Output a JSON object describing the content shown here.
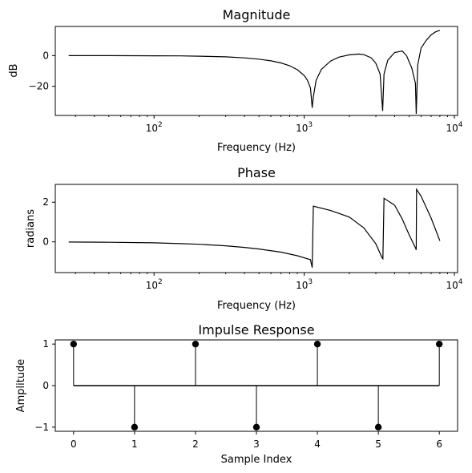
{
  "chart_data": [
    {
      "type": "line",
      "title": "Magnitude",
      "xlabel": "Frequency (Hz)",
      "ylabel": "dB",
      "xscale": "log",
      "xlim": [
        22,
        10500
      ],
      "ylim": [
        -39,
        19
      ],
      "xticks": [
        {
          "value": 100,
          "exp": "2"
        },
        {
          "value": 1000,
          "exp": "3"
        },
        {
          "value": 10000,
          "exp": "4"
        }
      ],
      "yticks": [
        0,
        -20
      ],
      "ytick_labels": [
        "0",
        "−20"
      ],
      "grid": false,
      "series": [
        {
          "x": [
            27,
            50,
            100,
            150,
            200,
            300,
            400,
            500,
            600,
            700,
            800,
            900,
            1000,
            1050,
            1100,
            1130,
            1150,
            1200,
            1300,
            1500,
            1700,
            2000,
            2300,
            2500,
            2800,
            3000,
            3200,
            3330,
            3400,
            3600,
            4000,
            4500,
            4800,
            5200,
            5500,
            5570,
            5700,
            6000,
            6500,
            7000,
            7500,
            8000
          ],
          "y": [
            0,
            0,
            -0.1,
            -0.2,
            -0.4,
            -0.8,
            -1.5,
            -2.3,
            -3.4,
            -4.8,
            -6.6,
            -9.2,
            -13,
            -16,
            -21,
            -34,
            -27,
            -16,
            -9,
            -3.5,
            -1,
            0.5,
            1,
            0.6,
            -1.5,
            -5,
            -12,
            -36,
            -12,
            -3,
            2,
            3,
            0,
            -8,
            -18,
            -38,
            -6,
            5,
            10,
            13.5,
            15.5,
            16.5
          ]
        }
      ]
    },
    {
      "type": "line",
      "title": "Phase",
      "xlabel": "Frequency (Hz)",
      "ylabel": "radians",
      "xscale": "log",
      "xlim": [
        22,
        10500
      ],
      "ylim": [
        -1.55,
        2.9
      ],
      "xticks": [
        {
          "value": 100,
          "exp": "2"
        },
        {
          "value": 1000,
          "exp": "3"
        },
        {
          "value": 10000,
          "exp": "4"
        }
      ],
      "yticks": [
        2,
        0
      ],
      "ytick_labels": [
        "2",
        "0"
      ],
      "grid": false,
      "series": [
        {
          "x": [
            27,
            50,
            100,
            150,
            200,
            300,
            400,
            500,
            700,
            900,
            1100,
            1130,
            1150,
            1500,
            2000,
            2500,
            3000,
            3300,
            3340,
            3400,
            4000,
            4500,
            5000,
            5500,
            5570,
            5600,
            6000,
            7000,
            8000
          ],
          "y": [
            -0.01,
            -0.02,
            -0.05,
            -0.09,
            -0.12,
            -0.2,
            -0.28,
            -0.36,
            -0.52,
            -0.7,
            -0.9,
            -1.3,
            1.8,
            1.58,
            1.25,
            0.7,
            -0.1,
            -0.8,
            -0.85,
            2.2,
            1.85,
            1.15,
            0.35,
            -0.3,
            -0.4,
            2.65,
            2.3,
            1.2,
            0.05
          ]
        }
      ]
    },
    {
      "type": "stem",
      "title": "Impulse Response",
      "xlabel": "Sample Index",
      "ylabel": "Amplitude",
      "xlim": [
        -0.3,
        6.3
      ],
      "ylim": [
        -1.1,
        1.1
      ],
      "xticks": [
        0,
        1,
        2,
        3,
        4,
        5,
        6
      ],
      "yticks": [
        1,
        0,
        -1
      ],
      "ytick_labels": [
        "1",
        "0",
        "−1"
      ],
      "grid": false,
      "baseline": 0,
      "series": [
        {
          "x": [
            0,
            1,
            2,
            3,
            4,
            5,
            6
          ],
          "y": [
            1,
            -1,
            1,
            -1,
            1,
            -1,
            1
          ]
        }
      ]
    }
  ]
}
